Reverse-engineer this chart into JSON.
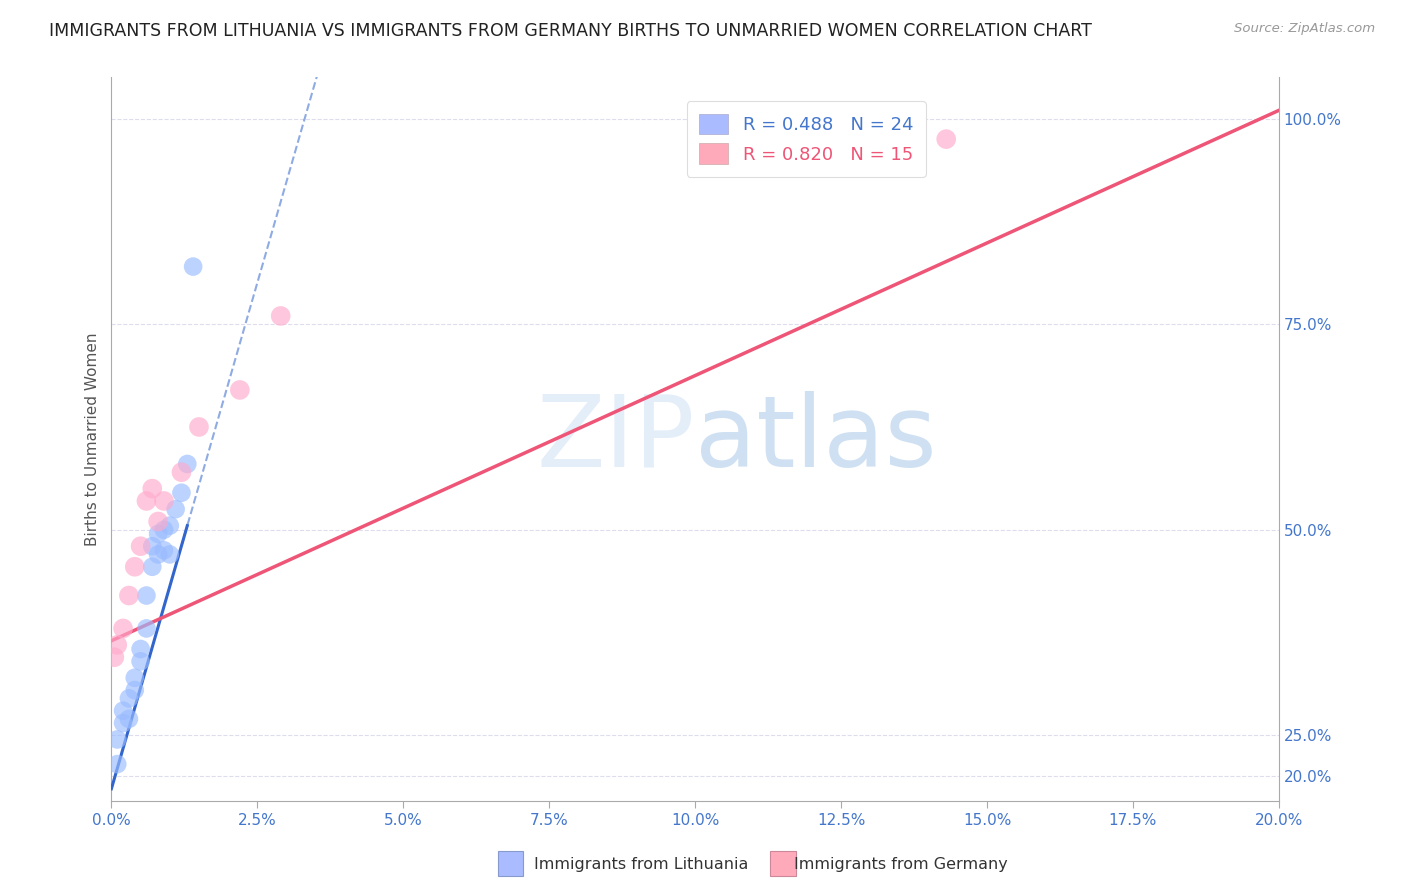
{
  "title": "IMMIGRANTS FROM LITHUANIA VS IMMIGRANTS FROM GERMANY BIRTHS TO UNMARRIED WOMEN CORRELATION CHART",
  "source": "Source: ZipAtlas.com",
  "ylabel": "Births to Unmarried Women",
  "r_lithuania": 0.488,
  "n_lithuania": 24,
  "r_germany": 0.82,
  "n_germany": 15,
  "color_lithuania": "#99bbff",
  "color_germany": "#ffaacc",
  "color_trend_lithuania": "#3366cc",
  "color_trend_germany": "#ee5577",
  "watermark_zip": "ZIP",
  "watermark_atlas": "atlas",
  "xlim": [
    0.0,
    0.2
  ],
  "ylim": [
    0.17,
    1.05
  ],
  "xticks": [
    0.0,
    0.025,
    0.05,
    0.075,
    0.1,
    0.125,
    0.15,
    0.175,
    0.2
  ],
  "xtick_labels": [
    "0.0%",
    "2.5%",
    "5.0%",
    "7.5%",
    "10.0%",
    "12.5%",
    "15.0%",
    "17.5%",
    "20.0%"
  ],
  "yticks_right": [
    0.2,
    0.25,
    0.5,
    0.75,
    1.0
  ],
  "ytick_labels_right": [
    "20.0%",
    "25.0%",
    "50.0%",
    "75.0%",
    "100.0%"
  ],
  "scatter_lithuania_x": [
    0.001,
    0.001,
    0.002,
    0.002,
    0.003,
    0.003,
    0.004,
    0.004,
    0.005,
    0.005,
    0.006,
    0.006,
    0.007,
    0.007,
    0.008,
    0.008,
    0.009,
    0.009,
    0.01,
    0.01,
    0.011,
    0.012,
    0.013,
    0.014
  ],
  "scatter_lithuania_y": [
    0.215,
    0.245,
    0.265,
    0.28,
    0.27,
    0.295,
    0.305,
    0.32,
    0.34,
    0.355,
    0.38,
    0.42,
    0.455,
    0.48,
    0.47,
    0.495,
    0.475,
    0.5,
    0.505,
    0.47,
    0.525,
    0.545,
    0.58,
    0.82
  ],
  "scatter_germany_x": [
    0.0005,
    0.001,
    0.002,
    0.003,
    0.004,
    0.005,
    0.006,
    0.007,
    0.008,
    0.009,
    0.012,
    0.015,
    0.022,
    0.029,
    0.143
  ],
  "scatter_germany_y": [
    0.345,
    0.36,
    0.38,
    0.42,
    0.455,
    0.48,
    0.535,
    0.55,
    0.51,
    0.535,
    0.57,
    0.625,
    0.67,
    0.76,
    0.975
  ],
  "trend_lit_x0": 0.0,
  "trend_lit_y0": 0.185,
  "trend_lit_x1": 0.013,
  "trend_lit_y1": 0.505,
  "trend_ger_x0": 0.0,
  "trend_ger_y0": 0.365,
  "trend_ger_x1": 0.2,
  "trend_ger_y1": 1.01,
  "background_color": "#ffffff",
  "grid_color": "#ddddee",
  "legend_box_color_lit": "#aabbff",
  "legend_box_color_ger": "#ffaabb"
}
